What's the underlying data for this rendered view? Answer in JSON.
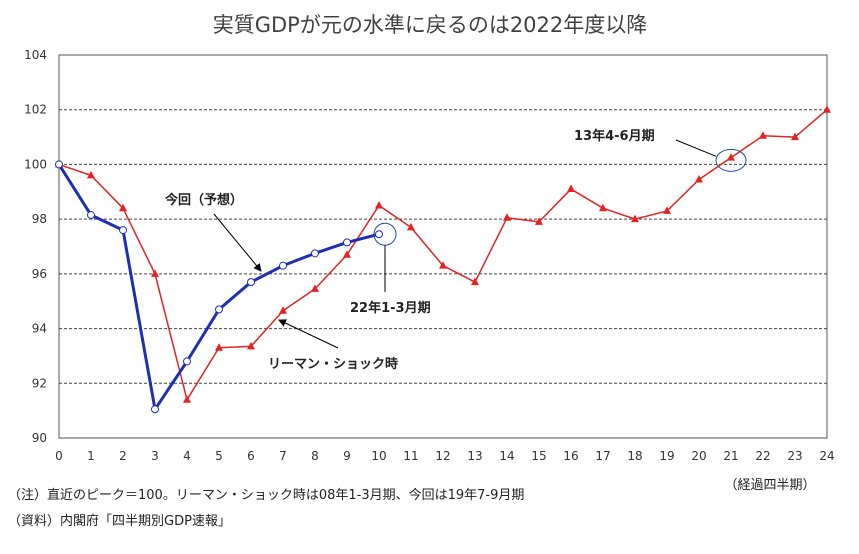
{
  "chart_data": {
    "type": "line",
    "title": "実質GDPが元の水準に戻るのは2022年度以降",
    "xlabel": "（経過四半期）",
    "ylabel": "",
    "xlim": [
      0,
      24
    ],
    "ylim": [
      90,
      104
    ],
    "x_ticks": [
      "0",
      "1",
      "2",
      "3",
      "4",
      "5",
      "6",
      "7",
      "8",
      "9",
      "10",
      "11",
      "12",
      "13",
      "14",
      "15",
      "16",
      "17",
      "18",
      "19",
      "20",
      "21",
      "22",
      "23",
      "24"
    ],
    "y_ticks": [
      "90",
      "92",
      "94",
      "96",
      "98",
      "100",
      "102",
      "104"
    ],
    "grid": true,
    "series": [
      {
        "name": "今回（予想）",
        "color": "#1f2fb5",
        "marker": "circle",
        "x": [
          0,
          1,
          2,
          3,
          4,
          5,
          6,
          7,
          8,
          9,
          10
        ],
        "values": [
          100,
          98.15,
          97.6,
          91.05,
          92.8,
          94.7,
          95.7,
          96.3,
          96.75,
          97.15,
          97.45
        ]
      },
      {
        "name": "リーマン・ショック時",
        "color": "#e32222",
        "marker": "triangle",
        "x": [
          0,
          1,
          2,
          3,
          4,
          5,
          6,
          7,
          8,
          9,
          10,
          11,
          12,
          13,
          14,
          15,
          16,
          17,
          18,
          19,
          20,
          21,
          22,
          23,
          24
        ],
        "values": [
          100,
          99.6,
          98.4,
          96.0,
          91.4,
          93.3,
          93.35,
          94.65,
          95.45,
          96.7,
          98.5,
          97.7,
          96.3,
          95.7,
          98.05,
          97.9,
          99.1,
          98.4,
          98.0,
          98.3,
          99.45,
          100.25,
          101.05,
          101.0,
          102.0
        ]
      }
    ],
    "annotations": [
      {
        "text": "今回（予想）",
        "target_series": 0,
        "target_x": 6.4
      },
      {
        "text": "リーマン・ショック時",
        "target_series": 1,
        "target_x": 7
      },
      {
        "text": "22年1-3月期",
        "target_series": 0,
        "target_x": 10
      },
      {
        "text": "13年4-6月期",
        "target_series": 1,
        "target_x": 21
      }
    ]
  },
  "footnotes": {
    "note": "（注）直近のピーク＝100。リーマン・ショック時は08年1-3月期、今回は19年7-9月期",
    "source": "（資料）内閣府「四半期別GDP速報」"
  }
}
